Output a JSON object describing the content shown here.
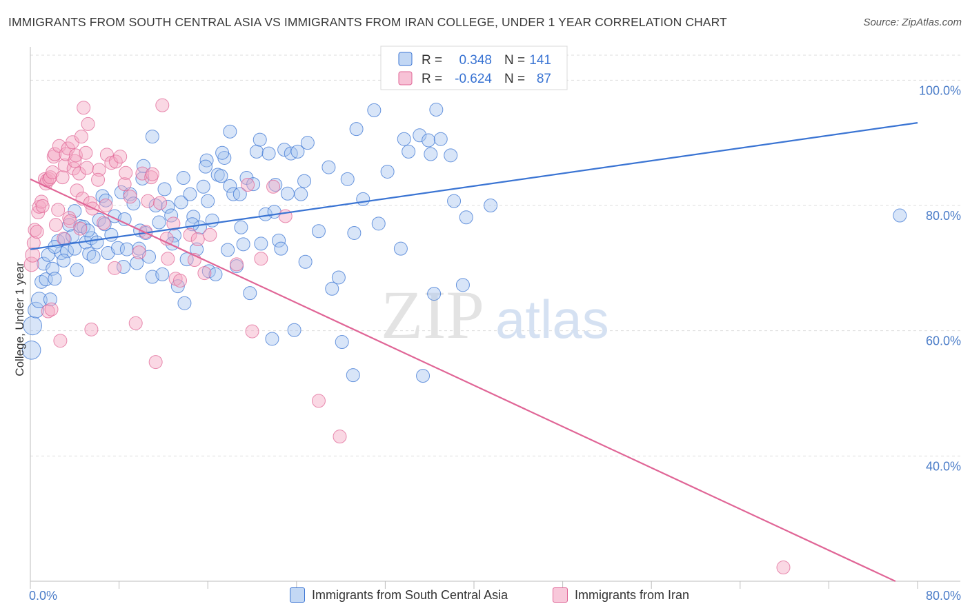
{
  "title": "IMMIGRANTS FROM SOUTH CENTRAL ASIA VS IMMIGRANTS FROM IRAN COLLEGE, UNDER 1 YEAR CORRELATION CHART",
  "source": "Source: ZipAtlas.com",
  "watermark": {
    "zip": "ZIP",
    "atlas": "atlas"
  },
  "colors": {
    "blue": "#3a74d3",
    "blue_fill": "#a8c6ef",
    "pink": "#e06596",
    "pink_fill": "#f3a8c4",
    "axis_text": "#4a7cc8",
    "grid": "#dddddd"
  },
  "stats": {
    "r_label": "R =",
    "n_label": "N =",
    "series1": {
      "r": "0.348",
      "n": "141"
    },
    "series2": {
      "r": "-0.624",
      "n": "87"
    }
  },
  "legend": {
    "series1": "Immigrants from South Central Asia",
    "series2": "Immigrants from Iran"
  },
  "chart_data": {
    "type": "scatter",
    "ylabel": "College, Under 1 year",
    "xlim": [
      0,
      80
    ],
    "ylim": [
      20,
      104
    ],
    "x_tick_labels": [
      {
        "value": 0,
        "label": "0.0%"
      },
      {
        "value": 80,
        "label": "80.0%"
      }
    ],
    "y_tick_labels": [
      {
        "value": 100,
        "label": "100.0%"
      },
      {
        "value": 80,
        "label": "80.0%"
      },
      {
        "value": 60,
        "label": "60.0%"
      },
      {
        "value": 40,
        "label": "40.0%"
      }
    ],
    "series": [
      {
        "name": "Immigrants from South Central Asia",
        "color": "#3a74d3",
        "trend": {
          "x": [
            0,
            80
          ],
          "y": [
            73.0,
            93.2
          ]
        },
        "points": [
          [
            0.1,
            56.9,
            1.4
          ],
          [
            0.2,
            60.8,
            1.4
          ],
          [
            0.5,
            63.3,
            1.2
          ],
          [
            0.8,
            64.9,
            1.2
          ],
          [
            1.0,
            67.8,
            1.0
          ],
          [
            1.2,
            70.7,
            1.0
          ],
          [
            1.4,
            68.2,
            1.0
          ],
          [
            1.6,
            72.1,
            1.0
          ],
          [
            1.8,
            65.0,
            1.0
          ],
          [
            2.0,
            69.9,
            1.0
          ],
          [
            2.2,
            68.3,
            1.0
          ],
          [
            2.5,
            74.3,
            1.0
          ],
          [
            2.8,
            72.4,
            1.0
          ],
          [
            3.1,
            74.6,
            1.0
          ],
          [
            3.3,
            72.7,
            1.0
          ],
          [
            3.5,
            76.9,
            1.0
          ],
          [
            3.8,
            75.1,
            1.0
          ],
          [
            4.0,
            73.1,
            1.0
          ],
          [
            4.2,
            69.7,
            1.0
          ],
          [
            4.5,
            76.7,
            1.0
          ],
          [
            4.8,
            76.6,
            1.0
          ],
          [
            5.0,
            74.1,
            1.0
          ],
          [
            5.3,
            72.3,
            1.0
          ],
          [
            5.5,
            74.8,
            1.0
          ],
          [
            5.7,
            71.8,
            1.0
          ],
          [
            6.0,
            74.1,
            1.0
          ],
          [
            6.2,
            77.7,
            1.0
          ],
          [
            6.5,
            81.5,
            1.0
          ],
          [
            6.8,
            80.8,
            1.0
          ],
          [
            7.0,
            72.4,
            1.0
          ],
          [
            7.3,
            75.3,
            1.0
          ],
          [
            7.6,
            78.3,
            1.0
          ],
          [
            7.9,
            73.2,
            1.0
          ],
          [
            8.2,
            82.1,
            1.0
          ],
          [
            8.5,
            77.8,
            1.0
          ],
          [
            8.7,
            73.0,
            1.0
          ],
          [
            9.0,
            81.8,
            1.0
          ],
          [
            9.3,
            80.3,
            1.0
          ],
          [
            9.6,
            70.8,
            1.0
          ],
          [
            9.9,
            76.0,
            1.0
          ],
          [
            10.1,
            84.3,
            1.0
          ],
          [
            10.4,
            75.6,
            1.0
          ],
          [
            10.7,
            71.8,
            1.0
          ],
          [
            11.0,
            68.6,
            1.0
          ],
          [
            11.3,
            80.0,
            1.0
          ],
          [
            11.6,
            77.3,
            1.0
          ],
          [
            11.9,
            69.0,
            1.0
          ],
          [
            12.1,
            82.6,
            1.0
          ],
          [
            12.4,
            79.8,
            1.0
          ],
          [
            12.7,
            78.4,
            1.0
          ],
          [
            13.0,
            75.2,
            1.0
          ],
          [
            13.3,
            67.1,
            1.0
          ],
          [
            13.6,
            80.5,
            1.0
          ],
          [
            13.9,
            64.4,
            1.0
          ],
          [
            14.1,
            71.4,
            1.0
          ],
          [
            14.4,
            81.8,
            1.0
          ],
          [
            14.7,
            78.2,
            1.0
          ],
          [
            15.0,
            73.0,
            1.0
          ],
          [
            15.3,
            76.5,
            1.0
          ],
          [
            15.6,
            83.0,
            1.0
          ],
          [
            15.9,
            87.2,
            1.0
          ],
          [
            16.1,
            69.5,
            1.0
          ],
          [
            16.4,
            77.6,
            1.0
          ],
          [
            16.7,
            69.0,
            1.0
          ],
          [
            16.9,
            84.9,
            1.0
          ],
          [
            17.2,
            84.7,
            1.0
          ],
          [
            17.5,
            87.6,
            1.0
          ],
          [
            17.8,
            72.9,
            1.0
          ],
          [
            18.0,
            83.1,
            1.0
          ],
          [
            18.3,
            81.8,
            1.0
          ],
          [
            18.6,
            70.3,
            1.0
          ],
          [
            18.9,
            81.8,
            1.0
          ],
          [
            19.2,
            73.8,
            1.0
          ],
          [
            19.5,
            84.4,
            1.0
          ],
          [
            19.8,
            66.0,
            1.0
          ],
          [
            20.1,
            83.4,
            1.0
          ],
          [
            20.4,
            88.6,
            1.0
          ],
          [
            20.7,
            90.5,
            1.0
          ],
          [
            21.2,
            78.6,
            1.0
          ],
          [
            21.8,
            58.7,
            1.0
          ],
          [
            22.1,
            83.3,
            1.0
          ],
          [
            22.4,
            74.4,
            1.0
          ],
          [
            22.6,
            73.1,
            1.0
          ],
          [
            22.9,
            88.9,
            1.0
          ],
          [
            23.2,
            81.9,
            1.0
          ],
          [
            23.5,
            88.3,
            1.0
          ],
          [
            23.8,
            60.1,
            1.0
          ],
          [
            24.1,
            88.6,
            1.0
          ],
          [
            24.4,
            81.8,
            1.0
          ],
          [
            24.7,
            83.9,
            1.0
          ],
          [
            25.0,
            90.0,
            1.0
          ],
          [
            26.9,
            86.1,
            1.0
          ],
          [
            27.2,
            66.7,
            1.0
          ],
          [
            27.8,
            68.5,
            1.0
          ],
          [
            28.1,
            58.2,
            1.0
          ],
          [
            28.6,
            84.2,
            1.0
          ],
          [
            29.1,
            52.9,
            1.0
          ],
          [
            29.4,
            92.2,
            1.0
          ],
          [
            30.0,
            81.0,
            1.0
          ],
          [
            31.0,
            95.2,
            1.0
          ],
          [
            32.2,
            85.4,
            1.0
          ],
          [
            33.4,
            73.1,
            1.0
          ],
          [
            33.7,
            90.6,
            1.0
          ],
          [
            34.1,
            88.6,
            1.0
          ],
          [
            35.1,
            91.2,
            1.0
          ],
          [
            35.4,
            52.8,
            1.0
          ],
          [
            35.9,
            90.4,
            1.0
          ],
          [
            36.1,
            88.2,
            1.0
          ],
          [
            36.4,
            65.9,
            1.0
          ],
          [
            37.0,
            90.6,
            1.0
          ],
          [
            37.9,
            88.0,
            1.0
          ],
          [
            38.2,
            80.7,
            1.0
          ],
          [
            39.0,
            67.3,
            1.0
          ],
          [
            39.3,
            78.1,
            1.0
          ],
          [
            41.5,
            80.0,
            1.0
          ],
          [
            78.4,
            78.4,
            1.0
          ],
          [
            36.6,
            95.3,
            1.0
          ],
          [
            21.5,
            88.3,
            1.0
          ],
          [
            18.0,
            91.8,
            1.0
          ],
          [
            11.0,
            91.0,
            1.0
          ],
          [
            10.2,
            86.3,
            1.0
          ],
          [
            12.8,
            73.9,
            1.0
          ],
          [
            8.4,
            70.2,
            1.0
          ],
          [
            5.2,
            76.0,
            1.0
          ],
          [
            3.0,
            71.2,
            1.0
          ],
          [
            19.0,
            76.5,
            1.0
          ],
          [
            9.8,
            73.1,
            1.0
          ],
          [
            15.8,
            86.2,
            1.0
          ],
          [
            20.8,
            73.9,
            1.0
          ],
          [
            24.8,
            71.0,
            1.0
          ],
          [
            17.3,
            88.4,
            1.0
          ],
          [
            13.8,
            84.4,
            1.0
          ],
          [
            6.7,
            77.0,
            1.0
          ],
          [
            22.0,
            79.0,
            1.0
          ],
          [
            26.0,
            75.9,
            1.0
          ],
          [
            14.6,
            77.0,
            1.0
          ],
          [
            31.4,
            77.1,
            1.0
          ],
          [
            2.2,
            73.4,
            1.0
          ],
          [
            4.0,
            79.1,
            1.0
          ],
          [
            16.0,
            80.7,
            1.0
          ],
          [
            29.2,
            75.6,
            1.0
          ]
        ]
      },
      {
        "name": "Immigrants from Iran",
        "color": "#e06596",
        "trend": {
          "x": [
            0,
            78
          ],
          "y": [
            84.2,
            20
          ]
        },
        "points": [
          [
            0.1,
            70.6,
            1.1
          ],
          [
            0.2,
            72.1,
            1.1
          ],
          [
            0.3,
            74.0,
            1.0
          ],
          [
            0.4,
            76.1,
            1.0
          ],
          [
            0.6,
            75.8,
            1.0
          ],
          [
            0.7,
            78.9,
            1.0
          ],
          [
            0.8,
            79.8,
            1.0
          ],
          [
            1.0,
            80.6,
            1.0
          ],
          [
            1.1,
            79.9,
            1.0
          ],
          [
            1.3,
            84.2,
            1.0
          ],
          [
            1.4,
            83.5,
            1.0
          ],
          [
            1.5,
            84.0,
            1.0
          ],
          [
            1.6,
            63.1,
            1.0
          ],
          [
            1.7,
            84.2,
            1.0
          ],
          [
            1.8,
            84.5,
            1.0
          ],
          [
            2.0,
            85.3,
            1.0
          ],
          [
            2.1,
            87.8,
            1.0
          ],
          [
            2.2,
            88.2,
            1.0
          ],
          [
            2.3,
            76.9,
            1.0
          ],
          [
            2.5,
            79.3,
            1.0
          ],
          [
            2.6,
            89.5,
            1.0
          ],
          [
            2.7,
            58.4,
            1.0
          ],
          [
            2.9,
            84.5,
            1.0
          ],
          [
            3.0,
            74.7,
            1.0
          ],
          [
            3.1,
            86.4,
            1.0
          ],
          [
            3.2,
            88.2,
            1.0
          ],
          [
            3.4,
            89.1,
            1.0
          ],
          [
            3.5,
            78.0,
            1.0
          ],
          [
            3.6,
            77.5,
            1.0
          ],
          [
            3.8,
            90.1,
            1.0
          ],
          [
            3.9,
            85.9,
            1.0
          ],
          [
            4.0,
            87.1,
            1.0
          ],
          [
            4.1,
            88.0,
            1.0
          ],
          [
            4.2,
            82.4,
            1.0
          ],
          [
            4.4,
            85.1,
            1.0
          ],
          [
            4.5,
            76.3,
            1.0
          ],
          [
            4.6,
            91.0,
            1.0
          ],
          [
            4.7,
            81.1,
            1.0
          ],
          [
            4.8,
            95.6,
            1.0
          ],
          [
            5.0,
            88.4,
            1.0
          ],
          [
            5.1,
            86.0,
            1.0
          ],
          [
            5.2,
            93.0,
            1.0
          ],
          [
            5.4,
            80.4,
            1.0
          ],
          [
            5.5,
            60.2,
            1.0
          ],
          [
            5.6,
            79.5,
            1.0
          ],
          [
            6.2,
            85.7,
            1.0
          ],
          [
            6.6,
            77.2,
            1.0
          ],
          [
            6.8,
            80.0,
            1.0
          ],
          [
            6.9,
            88.1,
            1.0
          ],
          [
            7.3,
            86.8,
            1.0
          ],
          [
            7.6,
            70.0,
            1.0
          ],
          [
            7.7,
            87.0,
            1.0
          ],
          [
            8.5,
            83.4,
            1.0
          ],
          [
            8.6,
            85.2,
            1.0
          ],
          [
            9.0,
            81.4,
            1.0
          ],
          [
            9.5,
            61.2,
            1.0
          ],
          [
            10.1,
            85.1,
            1.0
          ],
          [
            10.4,
            75.8,
            1.0
          ],
          [
            10.6,
            80.7,
            1.0
          ],
          [
            10.9,
            84.5,
            1.0
          ],
          [
            11.0,
            85.0,
            1.0
          ],
          [
            11.3,
            55.0,
            1.0
          ],
          [
            11.7,
            80.4,
            1.0
          ],
          [
            11.9,
            96.0,
            1.0
          ],
          [
            12.3,
            74.7,
            1.0
          ],
          [
            12.9,
            77.1,
            1.0
          ],
          [
            13.1,
            68.3,
            1.0
          ],
          [
            13.5,
            68.0,
            1.0
          ],
          [
            14.4,
            75.3,
            1.0
          ],
          [
            14.8,
            71.3,
            1.0
          ],
          [
            15.1,
            74.6,
            1.0
          ],
          [
            15.7,
            69.2,
            1.0
          ],
          [
            16.2,
            75.3,
            1.0
          ],
          [
            18.6,
            70.6,
            1.0
          ],
          [
            19.6,
            83.3,
            1.0
          ],
          [
            20.0,
            59.9,
            1.0
          ],
          [
            20.8,
            71.5,
            1.0
          ],
          [
            21.9,
            83.0,
            1.0
          ],
          [
            23.0,
            78.3,
            1.0
          ],
          [
            26.0,
            48.8,
            1.0
          ],
          [
            27.9,
            43.1,
            1.0
          ],
          [
            67.9,
            22.2,
            1.0
          ],
          [
            8.1,
            87.8,
            1.0
          ],
          [
            6.1,
            84.1,
            1.0
          ],
          [
            9.8,
            72.5,
            1.0
          ],
          [
            1.9,
            63.4,
            1.0
          ],
          [
            12.4,
            71.5,
            1.0
          ]
        ]
      }
    ]
  }
}
